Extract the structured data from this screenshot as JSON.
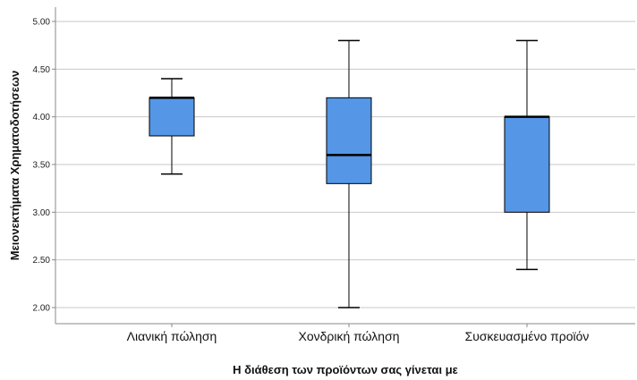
{
  "chart_data": {
    "type": "boxplot",
    "xlabel": "Η διάθεση των προϊόντων σας γίνεται με",
    "ylabel": "Μειονεκτήματα Χρηματοδοτήσεων",
    "ylim": [
      2.0,
      5.0
    ],
    "yticks": [
      "2.00",
      "2.50",
      "3.00",
      "3.50",
      "4.00",
      "4.50",
      "5.00"
    ],
    "grid": true,
    "box_color": "#5596e6",
    "categories": [
      "Λιανική πώληση",
      "Χονδρική πώληση",
      "Συσκευασμένο προϊόν"
    ],
    "boxes": [
      {
        "category": "Λιανική πώληση",
        "min": 3.4,
        "q1": 3.8,
        "median": 4.2,
        "q3": 4.2,
        "max": 4.4
      },
      {
        "category": "Χονδρική πώληση",
        "min": 2.0,
        "q1": 3.3,
        "median": 3.6,
        "q3": 4.2,
        "max": 4.8
      },
      {
        "category": "Συσκευασμένο προϊόν",
        "min": 2.4,
        "q1": 3.0,
        "median": 4.0,
        "q3": 4.0,
        "max": 4.8
      }
    ]
  }
}
